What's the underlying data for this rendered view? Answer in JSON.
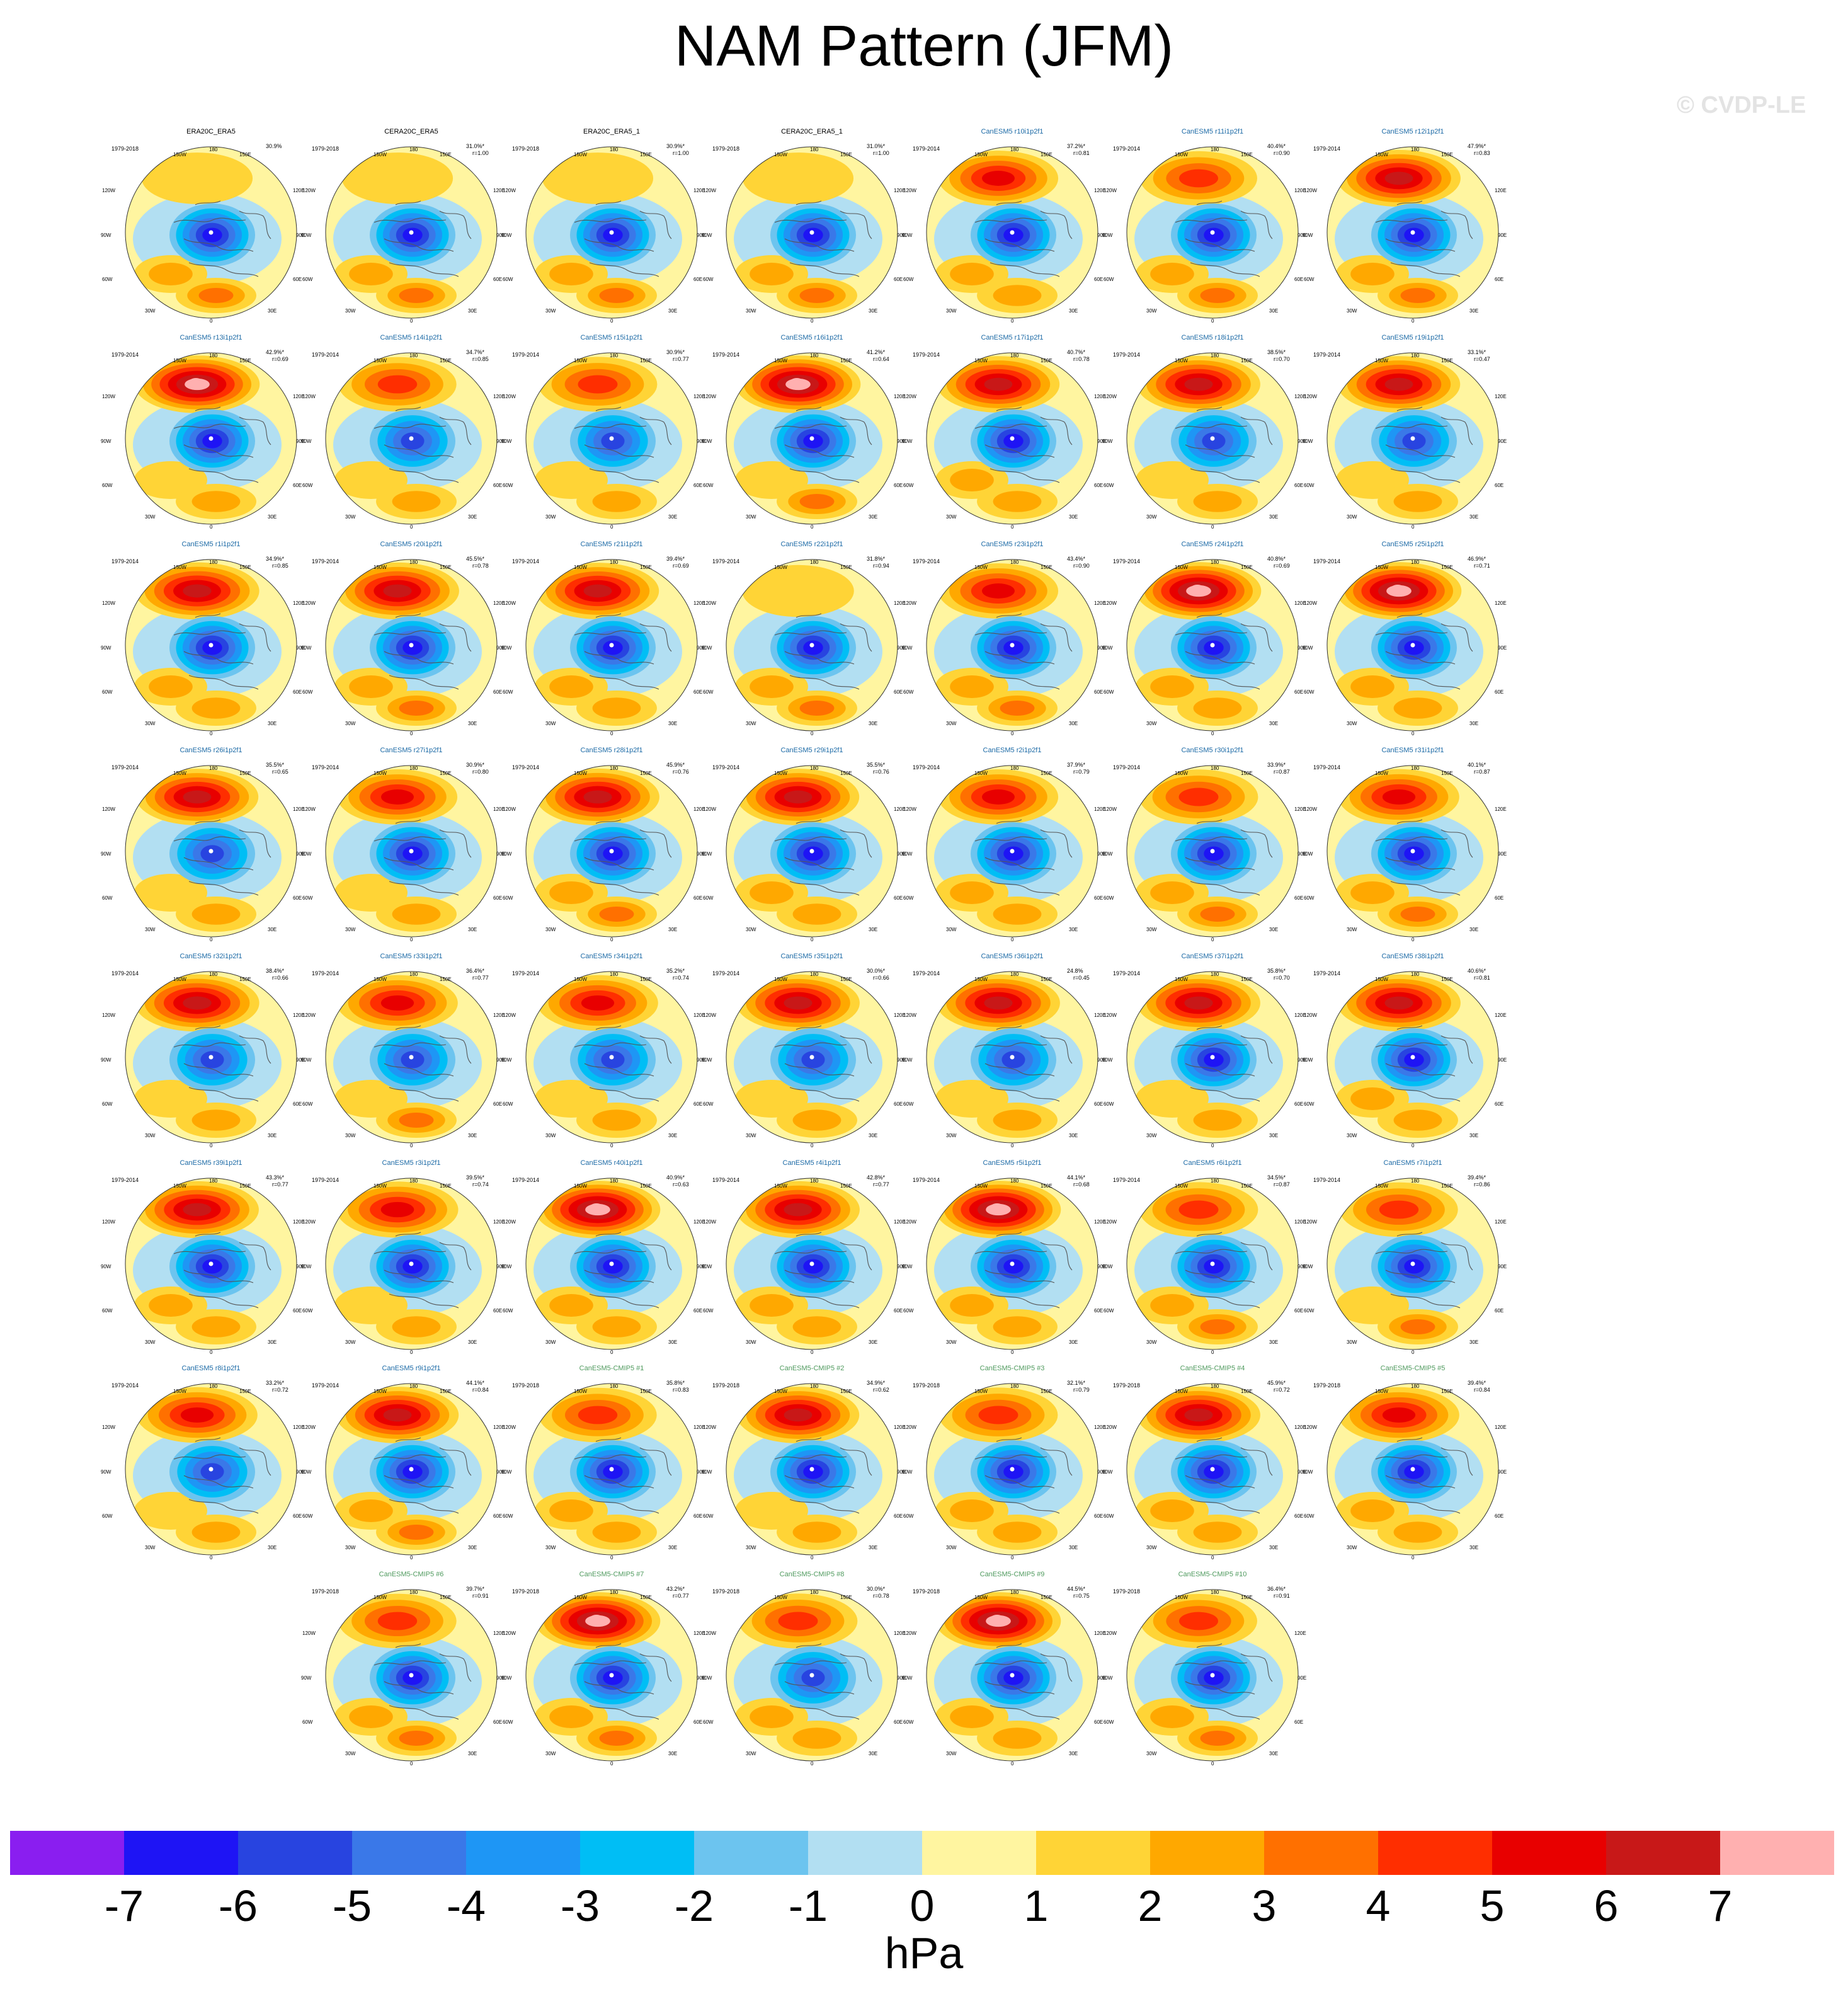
{
  "title": "NAM Pattern (JFM)",
  "watermark": "© CVDP-LE",
  "colors": {
    "model_title": "#1c6aa6",
    "cmip_title": "#4f9a5e",
    "obs_title": "#000000",
    "levels": [
      "#8a1ef0",
      "#1e14f5",
      "#2844e0",
      "#3a78e8",
      "#1e96f5",
      "#00bef5",
      "#6cc4ef",
      "#b2dff2",
      "#fff5a0",
      "#ffd436",
      "#ffa800",
      "#ff7000",
      "#ff2e00",
      "#e80000",
      "#c81818",
      "#ffb0b0"
    ]
  },
  "longitude_labels": [
    "180",
    "150W",
    "150E",
    "120W",
    "120E",
    "90W",
    "90E",
    "60W",
    "60E",
    "30W",
    "30E",
    "0"
  ],
  "chart_data": {
    "type": "heatmap",
    "title": "NAM Pattern (JFM)",
    "description_type": "polar stereographic map panels of the NAM regression pattern",
    "colorbar": {
      "label": "hPa",
      "ticks": [
        "-7",
        "-6",
        "-5",
        "-4",
        "-3",
        "-2",
        "-1",
        "0",
        "1",
        "2",
        "3",
        "4",
        "5",
        "6",
        "7"
      ],
      "boundaries": [
        -7,
        -6,
        -5,
        -4,
        -3,
        -2,
        -1,
        0,
        1,
        2,
        3,
        4,
        5,
        6,
        7
      ],
      "n_colors": 16
    },
    "panels": [
      {
        "name": "ERA20C_ERA5",
        "kind": "obs",
        "years": "1979-2018",
        "pct": "30.9%",
        "r": "",
        "ridge": 0.15,
        "trough": 0.8,
        "atl": 0.35,
        "eur": 0.55
      },
      {
        "name": "CERA20C_ERA5",
        "kind": "obs",
        "years": "1979-2018",
        "pct": "31.0%*",
        "r": "r=1.00",
        "ridge": 0.15,
        "trough": 0.8,
        "atl": 0.35,
        "eur": 0.55
      },
      {
        "name": "ERA20C_ERA5_1",
        "kind": "obs",
        "years": "1979-2018",
        "pct": "30.9%*",
        "r": "r=1.00",
        "ridge": 0.15,
        "trough": 0.8,
        "atl": 0.35,
        "eur": 0.55
      },
      {
        "name": "CERA20C_ERA5_1",
        "kind": "obs",
        "years": "1979-2018",
        "pct": "31.0%*",
        "r": "r=1.00",
        "ridge": 0.15,
        "trough": 0.8,
        "atl": 0.35,
        "eur": 0.55
      },
      {
        "name": "CanESM5 r10i1p2f1",
        "kind": "model",
        "years": "1979-2014",
        "pct": "37.2%*",
        "r": "r=0.81",
        "ridge": 0.65,
        "trough": 0.8,
        "atl": 0.3,
        "eur": 0.45
      },
      {
        "name": "CanESM5 r11i1p2f1",
        "kind": "model",
        "years": "1979-2014",
        "pct": "40.4%*",
        "r": "r=0.90",
        "ridge": 0.5,
        "trough": 0.85,
        "atl": 0.35,
        "eur": 0.5
      },
      {
        "name": "CanESM5 r12i1p2f1",
        "kind": "model",
        "years": "1979-2014",
        "pct": "47.9%*",
        "r": "r=0.83",
        "ridge": 0.85,
        "trough": 0.85,
        "atl": 0.3,
        "eur": 0.5
      },
      {
        "name": "CanESM5 r13i1p2f1",
        "kind": "model",
        "years": "1979-2014",
        "pct": "42.9%*",
        "r": "r=0.69",
        "ridge": 0.95,
        "trough": 0.8,
        "atl": 0.25,
        "eur": 0.45
      },
      {
        "name": "CanESM5 r14i1p2f1",
        "kind": "model",
        "years": "1979-2014",
        "pct": "34.7%*",
        "r": "r=0.85",
        "ridge": 0.55,
        "trough": 0.75,
        "atl": 0.25,
        "eur": 0.45
      },
      {
        "name": "CanESM5 r15i1p2f1",
        "kind": "model",
        "years": "1979-2014",
        "pct": "30.9%*",
        "r": "r=0.77",
        "ridge": 0.6,
        "trough": 0.75,
        "atl": 0.25,
        "eur": 0.45
      },
      {
        "name": "CanESM5 r16i1p2f1",
        "kind": "model",
        "years": "1979-2014",
        "pct": "41.2%*",
        "r": "r=0.64",
        "ridge": 0.95,
        "trough": 0.85,
        "atl": 0.25,
        "eur": 0.5
      },
      {
        "name": "CanESM5 r17i1p2f1",
        "kind": "model",
        "years": "1979-2014",
        "pct": "40.7%*",
        "r": "r=0.78",
        "ridge": 0.8,
        "trough": 0.8,
        "atl": 0.3,
        "eur": 0.45
      },
      {
        "name": "CanESM5 r18i1p2f1",
        "kind": "model",
        "years": "1979-2014",
        "pct": "38.5%*",
        "r": "r=0.70",
        "ridge": 0.85,
        "trough": 0.75,
        "atl": 0.25,
        "eur": 0.45
      },
      {
        "name": "CanESM5 r19i1p2f1",
        "kind": "model",
        "years": "1979-2014",
        "pct": "33.1%*",
        "r": "r=0.47",
        "ridge": 0.8,
        "trough": 0.7,
        "atl": 0.2,
        "eur": 0.4
      },
      {
        "name": "CanESM5 r1i1p2f1",
        "kind": "model",
        "years": "1979-2014",
        "pct": "34.9%*",
        "r": "r=0.85",
        "ridge": 0.9,
        "trough": 0.8,
        "atl": 0.3,
        "eur": 0.45
      },
      {
        "name": "CanESM5 r20i1p2f1",
        "kind": "model",
        "years": "1979-2014",
        "pct": "45.5%*",
        "r": "r=0.78",
        "ridge": 0.85,
        "trough": 0.85,
        "atl": 0.3,
        "eur": 0.5
      },
      {
        "name": "CanESM5 r21i1p2f1",
        "kind": "model",
        "years": "1979-2014",
        "pct": "39.4%*",
        "r": "r=0.69",
        "ridge": 0.8,
        "trough": 0.8,
        "atl": 0.3,
        "eur": 0.45
      },
      {
        "name": "CanESM5 r22i1p2f1",
        "kind": "model",
        "years": "1979-2014",
        "pct": "31.8%*",
        "r": "r=0.94",
        "ridge": 0.2,
        "trough": 0.8,
        "atl": 0.35,
        "eur": 0.5
      },
      {
        "name": "CanESM5 r23i1p2f1",
        "kind": "model",
        "years": "1979-2014",
        "pct": "43.4%*",
        "r": "r=0.90",
        "ridge": 0.65,
        "trough": 0.85,
        "atl": 0.35,
        "eur": 0.55
      },
      {
        "name": "CanESM5 r24i1p2f1",
        "kind": "model",
        "years": "1979-2014",
        "pct": "40.8%*",
        "r": "r=0.69",
        "ridge": 0.95,
        "trough": 0.8,
        "atl": 0.3,
        "eur": 0.45
      },
      {
        "name": "CanESM5 r25i1p2f1",
        "kind": "model",
        "years": "1979-2014",
        "pct": "46.9%*",
        "r": "r=0.71",
        "ridge": 0.95,
        "trough": 0.85,
        "atl": 0.3,
        "eur": 0.45
      },
      {
        "name": "CanESM5 r26i1p2f1",
        "kind": "model",
        "years": "1979-2014",
        "pct": "35.5%*",
        "r": "r=0.65",
        "ridge": 0.8,
        "trough": 0.7,
        "atl": 0.2,
        "eur": 0.4
      },
      {
        "name": "CanESM5 r27i1p2f1",
        "kind": "model",
        "years": "1979-2014",
        "pct": "30.9%*",
        "r": "r=0.80",
        "ridge": 0.65,
        "trough": 0.8,
        "atl": 0.25,
        "eur": 0.45
      },
      {
        "name": "CanESM5 r28i1p2f1",
        "kind": "model",
        "years": "1979-2014",
        "pct": "45.9%*",
        "r": "r=0.76",
        "ridge": 0.85,
        "trough": 0.8,
        "atl": 0.3,
        "eur": 0.5
      },
      {
        "name": "CanESM5 r29i1p2f1",
        "kind": "model",
        "years": "1979-2014",
        "pct": "35.5%*",
        "r": "r=0.76",
        "ridge": 0.8,
        "trough": 0.8,
        "atl": 0.3,
        "eur": 0.45
      },
      {
        "name": "CanESM5 r2i1p2f1",
        "kind": "model",
        "years": "1979-2014",
        "pct": "37.9%*",
        "r": "r=0.79",
        "ridge": 0.65,
        "trough": 0.85,
        "atl": 0.3,
        "eur": 0.45
      },
      {
        "name": "CanESM5 r30i1p2f1",
        "kind": "model",
        "years": "1979-2014",
        "pct": "33.9%*",
        "r": "r=0.87",
        "ridge": 0.6,
        "trough": 0.8,
        "atl": 0.3,
        "eur": 0.5
      },
      {
        "name": "CanESM5 r31i1p2f1",
        "kind": "model",
        "years": "1979-2014",
        "pct": "40.1%*",
        "r": "r=0.87",
        "ridge": 0.7,
        "trough": 0.85,
        "atl": 0.3,
        "eur": 0.6
      },
      {
        "name": "CanESM5 r32i1p2f1",
        "kind": "model",
        "years": "1979-2014",
        "pct": "38.4%*",
        "r": "r=0.66",
        "ridge": 0.9,
        "trough": 0.75,
        "atl": 0.25,
        "eur": 0.45
      },
      {
        "name": "CanESM5 r33i1p2f1",
        "kind": "model",
        "years": "1979-2014",
        "pct": "36.4%*",
        "r": "r=0.77",
        "ridge": 0.7,
        "trough": 0.75,
        "atl": 0.25,
        "eur": 0.55
      },
      {
        "name": "CanESM5 r34i1p2f1",
        "kind": "model",
        "years": "1979-2014",
        "pct": "35.2%*",
        "r": "r=0.74",
        "ridge": 0.7,
        "trough": 0.75,
        "atl": 0.25,
        "eur": 0.45
      },
      {
        "name": "CanESM5 r35i1p2f1",
        "kind": "model",
        "years": "1979-2014",
        "pct": "30.0%*",
        "r": "r=0.66",
        "ridge": 0.85,
        "trough": 0.75,
        "atl": 0.25,
        "eur": 0.45
      },
      {
        "name": "CanESM5 r36i1p2f1",
        "kind": "model",
        "years": "1979-2014",
        "pct": "24.8%",
        "r": "r=0.45",
        "ridge": 0.85,
        "trough": 0.7,
        "atl": 0.2,
        "eur": 0.4
      },
      {
        "name": "CanESM5 r37i1p2f1",
        "kind": "model",
        "years": "1979-2014",
        "pct": "35.8%*",
        "r": "r=0.70",
        "ridge": 0.85,
        "trough": 0.8,
        "atl": 0.25,
        "eur": 0.45
      },
      {
        "name": "CanESM5 r38i1p2f1",
        "kind": "model",
        "years": "1979-2014",
        "pct": "40.6%*",
        "r": "r=0.81",
        "ridge": 0.85,
        "trough": 0.8,
        "atl": 0.3,
        "eur": 0.45
      },
      {
        "name": "CanESM5 r39i1p2f1",
        "kind": "model",
        "years": "1979-2014",
        "pct": "43.3%*",
        "r": "r=0.77",
        "ridge": 0.85,
        "trough": 0.85,
        "atl": 0.3,
        "eur": 0.45
      },
      {
        "name": "CanESM5 r3i1p2f1",
        "kind": "model",
        "years": "1979-2014",
        "pct": "39.5%*",
        "r": "r=0.74",
        "ridge": 0.75,
        "trough": 0.85,
        "atl": 0.25,
        "eur": 0.45
      },
      {
        "name": "CanESM5 r40i1p2f1",
        "kind": "model",
        "years": "1979-2014",
        "pct": "40.9%*",
        "r": "r=0.63",
        "ridge": 0.95,
        "trough": 0.8,
        "atl": 0.3,
        "eur": 0.45
      },
      {
        "name": "CanESM5 r4i1p2f1",
        "kind": "model",
        "years": "1979-2014",
        "pct": "42.8%*",
        "r": "r=0.77",
        "ridge": 0.85,
        "trough": 0.8,
        "atl": 0.3,
        "eur": 0.45
      },
      {
        "name": "CanESM5 r5i1p2f1",
        "kind": "model",
        "years": "1979-2014",
        "pct": "44.1%*",
        "r": "r=0.68",
        "ridge": 0.95,
        "trough": 0.8,
        "atl": 0.3,
        "eur": 0.45
      },
      {
        "name": "CanESM5 r6i1p2f1",
        "kind": "model",
        "years": "1979-2014",
        "pct": "34.5%*",
        "r": "r=0.87",
        "ridge": 0.6,
        "trough": 0.85,
        "atl": 0.3,
        "eur": 0.5
      },
      {
        "name": "CanESM5 r7i1p2f1",
        "kind": "model",
        "years": "1979-2014",
        "pct": "39.4%*",
        "r": "r=0.86",
        "ridge": 0.55,
        "trough": 0.9,
        "atl": 0.25,
        "eur": 0.5
      },
      {
        "name": "CanESM5 r8i1p2f1",
        "kind": "model",
        "years": "1979-2014",
        "pct": "33.2%*",
        "r": "r=0.72",
        "ridge": 0.7,
        "trough": 0.75,
        "atl": 0.25,
        "eur": 0.45
      },
      {
        "name": "CanESM5 r9i1p2f1",
        "kind": "model",
        "years": "1979-2014",
        "pct": "44.1%*",
        "r": "r=0.84",
        "ridge": 0.8,
        "trough": 0.85,
        "atl": 0.3,
        "eur": 0.5
      },
      {
        "name": "CanESM5-CMIP5 #1",
        "kind": "cmip",
        "years": "1979-2018",
        "pct": "35.8%*",
        "r": "r=0.83",
        "ridge": 0.55,
        "trough": 0.85,
        "atl": 0.3,
        "eur": 0.45
      },
      {
        "name": "CanESM5-CMIP5 #2",
        "kind": "cmip",
        "years": "1979-2018",
        "pct": "34.9%*",
        "r": "r=0.62",
        "ridge": 0.8,
        "trough": 0.8,
        "atl": 0.25,
        "eur": 0.45
      },
      {
        "name": "CanESM5-CMIP5 #3",
        "kind": "cmip",
        "years": "1979-2018",
        "pct": "32.1%*",
        "r": "r=0.79",
        "ridge": 0.6,
        "trough": 0.8,
        "atl": 0.3,
        "eur": 0.45
      },
      {
        "name": "CanESM5-CMIP5 #4",
        "kind": "cmip",
        "years": "1979-2018",
        "pct": "45.9%*",
        "r": "r=0.72",
        "ridge": 0.85,
        "trough": 0.85,
        "atl": 0.3,
        "eur": 0.45
      },
      {
        "name": "CanESM5-CMIP5 #5",
        "kind": "cmip",
        "years": "1979-2018",
        "pct": "39.4%*",
        "r": "r=0.84",
        "ridge": 0.7,
        "trough": 0.85,
        "atl": 0.3,
        "eur": 0.45
      },
      {
        "name": "CanESM5-CMIP5 #6",
        "kind": "cmip",
        "years": "1979-2018",
        "pct": "39.7%*",
        "r": "r=0.91",
        "ridge": 0.55,
        "trough": 0.85,
        "atl": 0.35,
        "eur": 0.55
      },
      {
        "name": "CanESM5-CMIP5 #7",
        "kind": "cmip",
        "years": "1979-2018",
        "pct": "43.2%*",
        "r": "r=0.77",
        "ridge": 0.95,
        "trough": 0.85,
        "atl": 0.3,
        "eur": 0.5
      },
      {
        "name": "CanESM5-CMIP5 #8",
        "kind": "cmip",
        "years": "1979-2018",
        "pct": "30.0%*",
        "r": "r=0.78",
        "ridge": 0.6,
        "trough": 0.75,
        "atl": 0.3,
        "eur": 0.45
      },
      {
        "name": "CanESM5-CMIP5 #9",
        "kind": "cmip",
        "years": "1979-2018",
        "pct": "44.5%*",
        "r": "r=0.75",
        "ridge": 0.95,
        "trough": 0.85,
        "atl": 0.3,
        "eur": 0.45
      },
      {
        "name": "CanESM5-CMIP5 #10",
        "kind": "cmip",
        "years": "1979-2018",
        "pct": "36.4%*",
        "r": "r=0.91",
        "ridge": 0.5,
        "trough": 0.85,
        "atl": 0.35,
        "eur": 0.55
      }
    ]
  }
}
